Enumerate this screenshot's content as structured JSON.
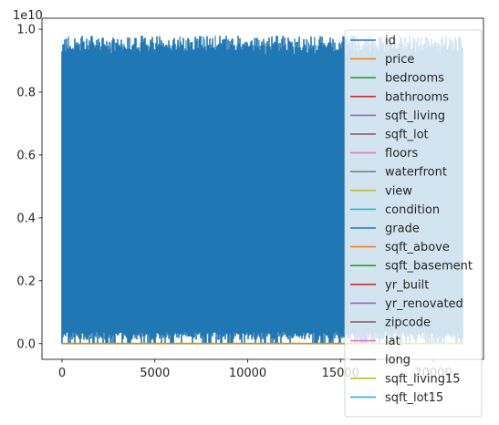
{
  "chart_data": {
    "type": "line",
    "title": "",
    "xlabel": "",
    "ylabel": "",
    "y_offset_label": "1e10",
    "xlim": [
      -1080,
      22700
    ],
    "ylim": [
      -0.05,
      1.035
    ],
    "x_ticks": [
      0,
      5000,
      10000,
      15000,
      20000
    ],
    "x_tick_labels": [
      "0",
      "5000",
      "10000",
      "15000",
      "20000"
    ],
    "y_ticks": [
      0.0,
      0.2,
      0.4,
      0.6,
      0.8,
      1.0
    ],
    "y_tick_labels": [
      "0.0",
      "0.2",
      "0.4",
      "0.6",
      "0.8",
      "1.0"
    ],
    "grid": false,
    "legend_position": "right",
    "x_range": [
      0,
      21612
    ],
    "series": [
      {
        "name": "id",
        "color": "#1f77b4",
        "approx_range": [
          0.0,
          0.98
        ],
        "dense_band": [
          0.93,
          0.96
        ]
      },
      {
        "name": "price",
        "color": "#ff7f0e"
      },
      {
        "name": "bedrooms",
        "color": "#2ca02c"
      },
      {
        "name": "bathrooms",
        "color": "#d62728"
      },
      {
        "name": "sqft_living",
        "color": "#9467bd"
      },
      {
        "name": "sqft_lot",
        "color": "#8c564b"
      },
      {
        "name": "floors",
        "color": "#e377c2"
      },
      {
        "name": "waterfront",
        "color": "#7f7f7f"
      },
      {
        "name": "view",
        "color": "#bcbd22"
      },
      {
        "name": "condition",
        "color": "#17becf"
      },
      {
        "name": "grade",
        "color": "#1f77b4"
      },
      {
        "name": "sqft_above",
        "color": "#ff7f0e"
      },
      {
        "name": "sqft_basement",
        "color": "#2ca02c"
      },
      {
        "name": "yr_built",
        "color": "#d62728"
      },
      {
        "name": "yr_renovated",
        "color": "#9467bd"
      },
      {
        "name": "zipcode",
        "color": "#8c564b"
      },
      {
        "name": "lat",
        "color": "#e377c2"
      },
      {
        "name": "long",
        "color": "#7f7f7f"
      },
      {
        "name": "sqft_living15",
        "color": "#bcbd22"
      },
      {
        "name": "sqft_lot15",
        "color": "#17becf"
      }
    ]
  }
}
